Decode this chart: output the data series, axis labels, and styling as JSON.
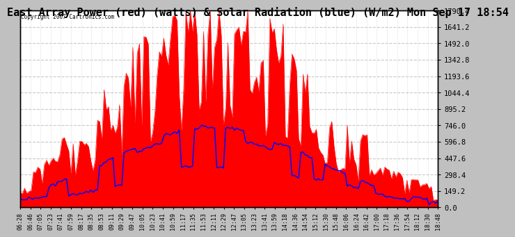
{
  "title": "East Array Power (red) (watts) & Solar Radiation (blue) (W/m2) Mon Sep 17 18:54",
  "copyright_text": "Copyright 2007 Cartronics.com",
  "outer_bg": "#c0c0c0",
  "plot_bg": "#ffffff",
  "y_ticks": [
    0.0,
    149.2,
    298.4,
    447.6,
    596.8,
    746.0,
    895.2,
    1044.4,
    1193.6,
    1342.8,
    1492.0,
    1641.2,
    1790.4
  ],
  "ylim": [
    0.0,
    1790.4
  ],
  "red_color": "#ff0000",
  "blue_color": "#0000ff",
  "grid_color": "#c8c8c8",
  "title_fontsize": 11,
  "tick_fontsize": 7.5,
  "border_color": "#000000",
  "x_tick_labels": [
    "06:28",
    "06:46",
    "07:05",
    "07:23",
    "07:41",
    "07:59",
    "08:17",
    "08:35",
    "08:53",
    "09:11",
    "09:29",
    "09:47",
    "10:05",
    "10:23",
    "10:41",
    "10:59",
    "11:17",
    "11:35",
    "11:53",
    "12:11",
    "12:29",
    "12:47",
    "13:05",
    "13:23",
    "13:41",
    "13:59",
    "14:18",
    "14:36",
    "14:54",
    "15:12",
    "15:30",
    "15:48",
    "16:06",
    "16:24",
    "16:42",
    "17:00",
    "17:18",
    "17:36",
    "17:54",
    "18:12",
    "18:30",
    "18:48"
  ]
}
